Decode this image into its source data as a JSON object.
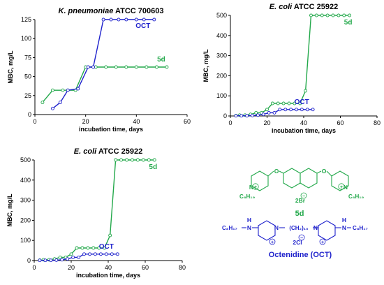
{
  "chart_data": [
    {
      "type": "line",
      "title_italic": "K. pneumoniae",
      "title_rest": " ATCC 700603",
      "xlabel": "incubation time, days",
      "ylabel": "MBC, mg/L",
      "xlim": [
        0,
        60
      ],
      "ylim": [
        0,
        125
      ],
      "xticks": [
        "0",
        "20",
        "40",
        "60"
      ],
      "yticks": [
        "0",
        "25",
        "50",
        "75",
        "100",
        "125"
      ],
      "series": [
        {
          "name": "5d",
          "color": "#22a84a",
          "x": [
            3,
            7,
            11,
            13,
            16,
            20,
            24,
            28,
            32,
            36,
            40,
            44,
            48,
            52
          ],
          "y": [
            16,
            32,
            32,
            32,
            32,
            62.5,
            62.5,
            62.5,
            62.5,
            62.5,
            62.5,
            62.5,
            62.5,
            62.5
          ]
        },
        {
          "name": "OCT",
          "color": "#1f22cc",
          "x": [
            7,
            10,
            13,
            17,
            21,
            23,
            27,
            30,
            33,
            36,
            40,
            43,
            47
          ],
          "y": [
            8,
            16,
            32,
            34,
            62.5,
            62.5,
            125,
            125,
            125,
            125,
            125,
            125,
            125
          ]
        }
      ]
    },
    {
      "type": "line",
      "title_italic": "E. coli",
      "title_rest": " ATCC 25922",
      "xlabel": "incubation time, days",
      "ylabel": "MBC, mg/L",
      "xlim": [
        0,
        80
      ],
      "ylim": [
        0,
        500
      ],
      "xticks": [
        "0",
        "20",
        "40",
        "60",
        "80"
      ],
      "yticks": [
        "0",
        "100",
        "200",
        "300",
        "400",
        "500"
      ],
      "series": [
        {
          "name": "5d",
          "color": "#22a84a",
          "x": [
            3,
            5,
            8,
            11,
            14,
            17,
            20,
            23,
            26,
            29,
            32,
            35,
            38,
            41,
            44,
            47,
            50,
            53,
            56,
            59,
            62,
            65
          ],
          "y": [
            2,
            4,
            4,
            8,
            16,
            16,
            32,
            62.5,
            62.5,
            62.5,
            62.5,
            62.5,
            62.5,
            125,
            500,
            500,
            500,
            500,
            500,
            500,
            500,
            500
          ]
        },
        {
          "name": "OCT",
          "color": "#1f22cc",
          "x": [
            3,
            6,
            9,
            12,
            15,
            18,
            21,
            24,
            27,
            30,
            33,
            36,
            39,
            42,
            45
          ],
          "y": [
            1,
            1,
            1,
            2,
            4,
            8,
            16,
            16,
            32,
            32,
            32,
            32,
            32,
            32,
            32
          ]
        }
      ]
    },
    {
      "type": "line",
      "title_italic": "E. coli",
      "title_rest": " ATCC 25922",
      "xlabel": "incubation time, days",
      "ylabel": "MBC, mg/L",
      "xlim": [
        0,
        80
      ],
      "ylim": [
        0,
        500
      ],
      "xticks": [
        "0",
        "20",
        "40",
        "60",
        "80"
      ],
      "yticks": [
        "0",
        "100",
        "200",
        "300",
        "400",
        "500"
      ],
      "series": [
        {
          "name": "5d",
          "color": "#22a84a",
          "x": [
            3,
            5,
            8,
            11,
            14,
            17,
            20,
            23,
            26,
            29,
            32,
            35,
            38,
            41,
            44,
            47,
            50,
            53,
            56,
            59,
            62,
            65
          ],
          "y": [
            2,
            4,
            4,
            8,
            16,
            16,
            32,
            62.5,
            62.5,
            62.5,
            62.5,
            62.5,
            62.5,
            125,
            500,
            500,
            500,
            500,
            500,
            500,
            500,
            500
          ]
        },
        {
          "name": "OCT",
          "color": "#1f22cc",
          "x": [
            3,
            6,
            9,
            12,
            15,
            18,
            21,
            24,
            27,
            30,
            33,
            36,
            39,
            42,
            45
          ],
          "y": [
            1,
            1,
            1,
            2,
            4,
            8,
            16,
            16,
            32,
            32,
            32,
            32,
            32,
            32,
            32
          ]
        }
      ]
    }
  ],
  "structures": {
    "fived": {
      "label": "5d",
      "color": "#22a84a",
      "counter_ion": "2Br",
      "chain_left": "C₈H₁₉",
      "chain_right": "C₈H₁₉",
      "minus": "−",
      "plus": "+"
    },
    "octenidine": {
      "label": "Octenidine (OCT)",
      "color": "#1f22cc",
      "counter_ion": "2Cl",
      "chain_left": "C₈H₁₇",
      "chain_right": "C₈H₁₇",
      "nh_left": "N",
      "h_left": "H",
      "nh_right": "N",
      "h_right": "H",
      "linker": "(CH₂)₁₀",
      "minus": "−",
      "plus": "+"
    }
  }
}
